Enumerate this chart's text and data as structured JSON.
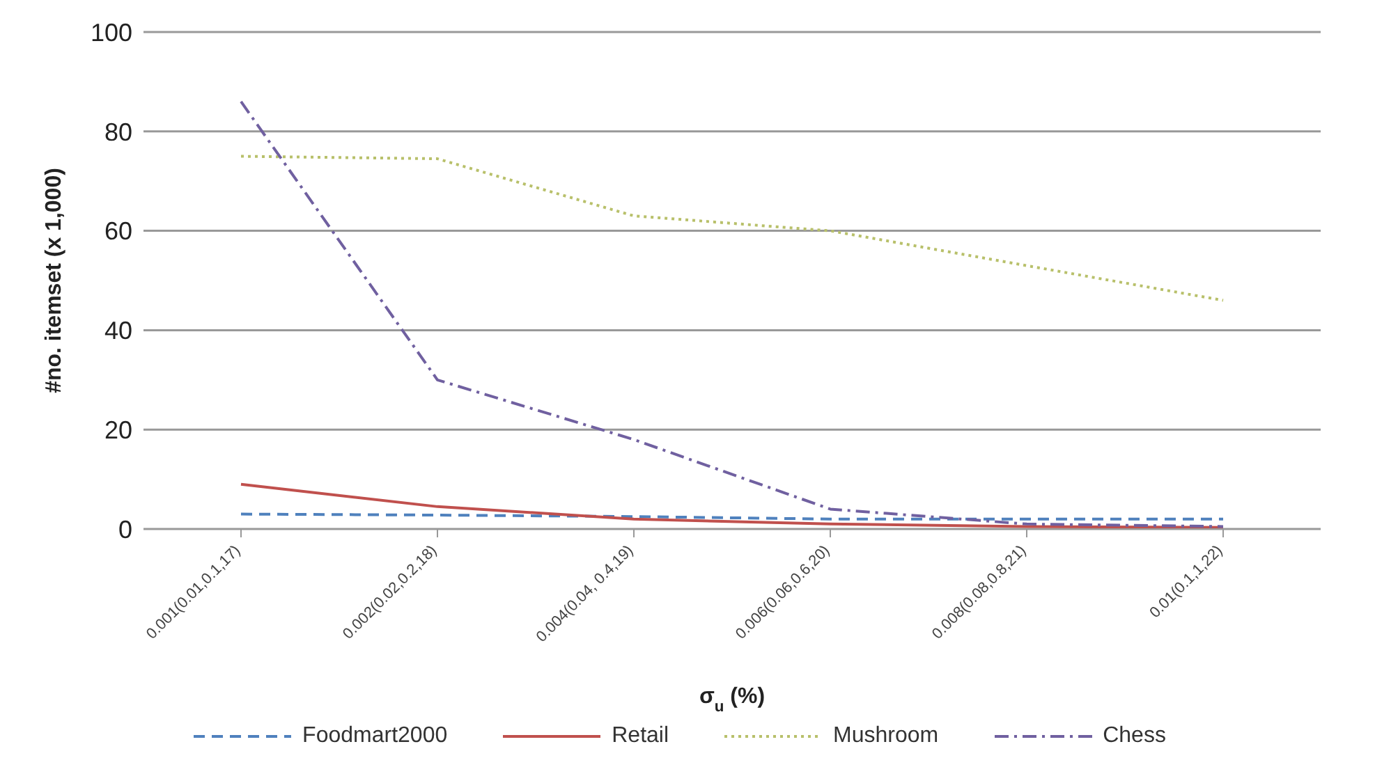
{
  "chart_data": {
    "type": "line",
    "xlabel": "σ$_{u}$ (%)",
    "ylabel": "#no. itemset (x 1,000)",
    "categories": [
      "0.001(0.01,0.1,17)",
      "0.002(0.02,0.2,18)",
      "0.004(0.04, 0.4,19)",
      "0.006(0.06,0.6,20)",
      "0.008(0.08,0.8,21)",
      "0.01(0.1,1,22)"
    ],
    "series": [
      {
        "name": "Foodmart2000",
        "color": "#4f81bd",
        "line_style": "dashed",
        "values": [
          3,
          2.8,
          2.5,
          2,
          2,
          2
        ]
      },
      {
        "name": "Retail",
        "color": "#c0504d",
        "line_style": "solid",
        "values": [
          9,
          4.5,
          2,
          1,
          0.5,
          0.3
        ]
      },
      {
        "name": "Mushroom",
        "color": "#b8c06a",
        "line_style": "dotted",
        "values": [
          75,
          74.5,
          63,
          60,
          53,
          46
        ]
      },
      {
        "name": "Chess",
        "color": "#7060a0",
        "line_style": "dashdot",
        "values": [
          86,
          30,
          18,
          4,
          1,
          0.5
        ]
      }
    ],
    "ylim": [
      0,
      100
    ],
    "yticks": [
      0,
      20,
      40,
      60,
      80,
      100
    ],
    "grid": "y",
    "legend": "bottom",
    "marker": "none"
  }
}
